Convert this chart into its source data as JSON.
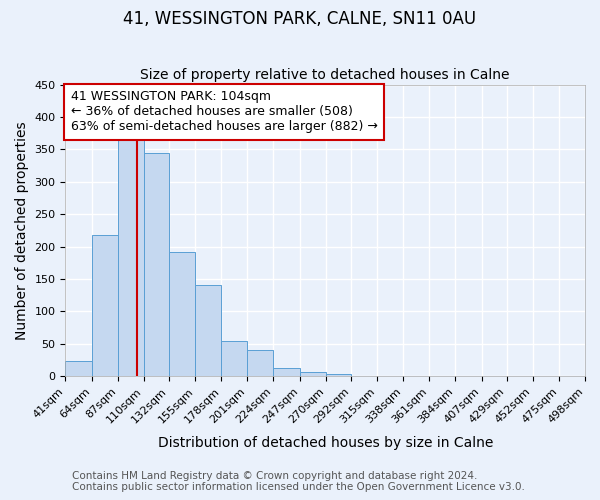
{
  "title": "41, WESSINGTON PARK, CALNE, SN11 0AU",
  "subtitle": "Size of property relative to detached houses in Calne",
  "xlabel": "Distribution of detached houses by size in Calne",
  "ylabel": "Number of detached properties",
  "bin_edges": [
    41,
    64,
    87,
    110,
    132,
    155,
    178,
    201,
    224,
    247,
    270,
    292,
    315,
    338,
    361,
    384,
    407,
    429,
    452,
    475,
    498
  ],
  "bar_heights": [
    24,
    218,
    375,
    345,
    191,
    141,
    55,
    40,
    13,
    7,
    4,
    1,
    0,
    0,
    0,
    1,
    0,
    0,
    0,
    1
  ],
  "bar_color": "#c5d8f0",
  "bar_edge_color": "#5a9fd4",
  "property_size": 104,
  "vline_color": "#cc0000",
  "annotation_text": "41 WESSINGTON PARK: 104sqm\n← 36% of detached houses are smaller (508)\n63% of semi-detached houses are larger (882) →",
  "annotation_box_color": "#ffffff",
  "annotation_box_edge_color": "#cc0000",
  "ylim": [
    0,
    450
  ],
  "yticks": [
    0,
    50,
    100,
    150,
    200,
    250,
    300,
    350,
    400,
    450
  ],
  "footer_line1": "Contains HM Land Registry data © Crown copyright and database right 2024.",
  "footer_line2": "Contains public sector information licensed under the Open Government Licence v3.0.",
  "background_color": "#eaf1fb",
  "grid_color": "#ffffff",
  "title_fontsize": 12,
  "subtitle_fontsize": 10,
  "axis_label_fontsize": 10,
  "tick_fontsize": 8,
  "annotation_fontsize": 9,
  "footer_fontsize": 7.5
}
